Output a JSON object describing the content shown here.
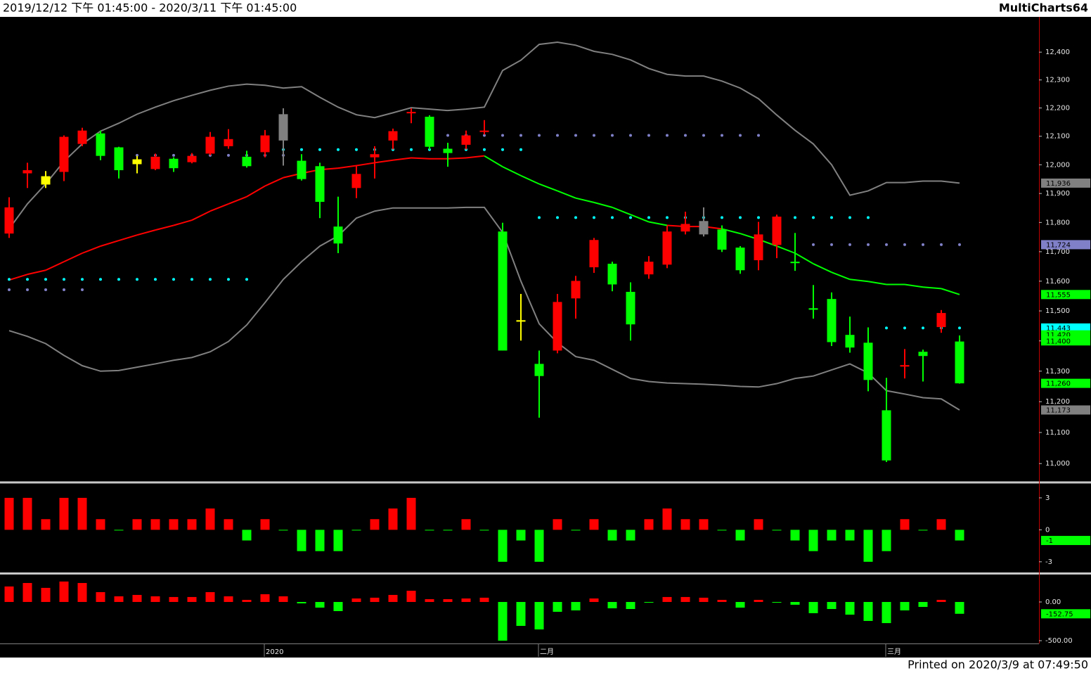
{
  "header": {
    "range": "2019/12/12 下午 01:45:00 - 2020/3/11 下午 01:45:00",
    "brand": "MultiCharts64"
  },
  "footer": "Printed on 2020/3/9 at 07:49:50",
  "chart_data": [
    {
      "type": "candlestick",
      "log_scale": true,
      "ylim": [
        10942,
        12528
      ],
      "yticks": [
        {
          "value": 11000,
          "label": "11,000"
        },
        {
          "value": 11100,
          "label": "11,100"
        },
        {
          "value": 11200,
          "label": "11,200"
        },
        {
          "value": 11300,
          "label": "11,300"
        },
        {
          "value": 11400,
          "label": "11,400"
        },
        {
          "value": 11500,
          "label": "11,500"
        },
        {
          "value": 11600,
          "label": "11,600"
        },
        {
          "value": 11700,
          "label": "11,700"
        },
        {
          "value": 11800,
          "label": "11,800"
        },
        {
          "value": 11900,
          "label": "11,900"
        },
        {
          "value": 12000,
          "label": "12,000"
        },
        {
          "value": 12100,
          "label": "12,100"
        },
        {
          "value": 12200,
          "label": "12,200"
        },
        {
          "value": 12300,
          "label": "12,300"
        },
        {
          "value": 12400,
          "label": "12,400"
        }
      ],
      "open": [
        11762,
        11970,
        11960,
        11975,
        12073,
        12110,
        12061,
        12019,
        11985,
        12021,
        12009,
        12039,
        12065,
        12028,
        12044,
        12178,
        12014,
        11995,
        11786,
        11919,
        12026,
        12085,
        12181,
        12169,
        12056,
        12070,
        12115,
        11769,
        11469,
        11324,
        11368,
        11542,
        11647,
        11659,
        11564,
        11623,
        11656,
        11769,
        11805,
        11776,
        11714,
        11671,
        11723,
        11666,
        11509,
        11540,
        11420,
        11394,
        11172,
        11315,
        11364,
        11446,
        11398
      ],
      "high": [
        11887,
        12007,
        11978,
        12103,
        12130,
        12120,
        12063,
        12031,
        12039,
        12026,
        12041,
        12115,
        12125,
        12049,
        12122,
        12199,
        12037,
        12007,
        11889,
        11997,
        12065,
        12127,
        12199,
        12174,
        12077,
        12120,
        12157,
        11799,
        11557,
        11368,
        11557,
        11618,
        11747,
        11666,
        11596,
        11685,
        11788,
        11837,
        11852,
        11790,
        11719,
        11802,
        11827,
        11764,
        11587,
        11562,
        11481,
        11445,
        11278,
        11373,
        11371,
        11503,
        11418
      ],
      "low": [
        11747,
        11919,
        11919,
        11943,
        12065,
        12016,
        11952,
        11970,
        11981,
        11975,
        12005,
        12033,
        12056,
        11990,
        12026,
        11997,
        11945,
        11815,
        11695,
        11884,
        11952,
        12053,
        12146,
        12053,
        11993,
        12053,
        12106,
        11368,
        11401,
        11148,
        11359,
        11474,
        11628,
        11566,
        11401,
        11608,
        11644,
        11759,
        11752,
        11699,
        11625,
        11637,
        11678,
        11635,
        11474,
        11383,
        11361,
        11234,
        11005,
        11276,
        11266,
        11427,
        11259
      ],
      "close": [
        11852,
        11981,
        11931,
        12098,
        12120,
        12031,
        11981,
        12002,
        12028,
        11988,
        12031,
        12098,
        12090,
        11995,
        12103,
        12085,
        11950,
        11871,
        11728,
        11968,
        12037,
        12118,
        12186,
        12063,
        12041,
        12103,
        12120,
        11368,
        11464,
        11284,
        11530,
        11601,
        11740,
        11589,
        11455,
        11666,
        11769,
        11795,
        11759,
        11707,
        11637,
        11759,
        11820,
        11661,
        11504,
        11396,
        11378,
        11271,
        11010,
        11320,
        11350,
        11493,
        11260
      ],
      "candle_colors": [
        "#ff0000",
        "#ff0000",
        "#ffff00",
        "#ff0000",
        "#ff0000",
        "#00ff00",
        "#00ff00",
        "#ffff00",
        "#ff0000",
        "#00ff00",
        "#ff0000",
        "#ff0000",
        "#ff0000",
        "#00ff00",
        "#ff0000",
        "#808080",
        "#00ff00",
        "#00ff00",
        "#00ff00",
        "#ff0000",
        "#ff0000",
        "#ff0000",
        "#ff0000",
        "#00ff00",
        "#00ff00",
        "#ff0000",
        "#ff0000",
        "#00ff00",
        "#ffff00",
        "#00ff00",
        "#ff0000",
        "#ff0000",
        "#ff0000",
        "#00ff00",
        "#00ff00",
        "#ff0000",
        "#ff0000",
        "#ff0000",
        "#808080",
        "#00ff00",
        "#00ff00",
        "#ff0000",
        "#ff0000",
        "#00ff00",
        "#00ff00",
        "#00ff00",
        "#00ff00",
        "#00ff00",
        "#00ff00",
        "#ff0000",
        "#00ff00",
        "#ff0000",
        "#00ff00"
      ],
      "lines": [
        {
          "color": "#808080",
          "values": [
            11778,
            11864,
            11933,
            12012,
            12073,
            12118,
            12146,
            12178,
            12203,
            12226,
            12245,
            12263,
            12278,
            12285,
            12281,
            12271,
            12276,
            12238,
            12203,
            12176,
            12166,
            12183,
            12201,
            12196,
            12191,
            12196,
            12203,
            12334,
            12371,
            12428,
            12436,
            12425,
            12403,
            12392,
            12372,
            12341,
            12320,
            12314,
            12314,
            12296,
            12271,
            12233,
            12175,
            12121,
            12073,
            12000,
            11894,
            11909,
            11938,
            11938,
            11943,
            11943,
            11936
          ]
        },
        {
          "color": "#808080",
          "values": [
            11434,
            11415,
            11391,
            11352,
            11318,
            11300,
            11302,
            11313,
            11324,
            11336,
            11345,
            11364,
            11398,
            11453,
            11528,
            11606,
            11666,
            11719,
            11754,
            11815,
            11839,
            11850,
            11850,
            11850,
            11850,
            11852,
            11852,
            11766,
            11600,
            11457,
            11394,
            11348,
            11336,
            11306,
            11276,
            11266,
            11261,
            11259,
            11257,
            11254,
            11250,
            11248,
            11259,
            11276,
            11284,
            11304,
            11324,
            11294,
            11236,
            11225,
            11213,
            11209,
            11173
          ]
        },
        {
          "colors": [
            "#ff0000",
            "#ff0000",
            "#ff0000",
            "#ff0000",
            "#ff0000",
            "#ff0000",
            "#ff0000",
            "#ff0000",
            "#ff0000",
            "#ff0000",
            "#ff0000",
            "#ff0000",
            "#ff0000",
            "#ff0000",
            "#ff0000",
            "#ff0000",
            "#ff0000",
            "#ff0000",
            "#ff0000",
            "#ff0000",
            "#ff0000",
            "#ff0000",
            "#ff0000",
            "#ff0000",
            "#ff0000",
            "#ff0000",
            "#ff0000",
            "#00ff00",
            "#00ff00",
            "#00ff00",
            "#00ff00",
            "#00ff00",
            "#00ff00",
            "#00ff00",
            "#00ff00",
            "#00ff00",
            "#00ff00",
            "#ff0000",
            "#ff0000",
            "#ff0000",
            "#00ff00",
            "#00ff00",
            "#00ff00",
            "#00ff00",
            "#00ff00",
            "#00ff00",
            "#00ff00",
            "#00ff00",
            "#00ff00",
            "#00ff00",
            "#00ff00",
            "#00ff00",
            "#00ff00"
          ],
          "values": [
            11604,
            11623,
            11637,
            11666,
            11695,
            11719,
            11738,
            11757,
            11774,
            11790,
            11808,
            11839,
            11864,
            11889,
            11926,
            11955,
            11970,
            11983,
            11988,
            11997,
            12007,
            12016,
            12024,
            12021,
            12021,
            12024,
            12031,
            11993,
            11962,
            11933,
            11909,
            11884,
            11869,
            11852,
            11827,
            11802,
            11790,
            11786,
            11786,
            11778,
            11762,
            11742,
            11719,
            11695,
            11659,
            11630,
            11606,
            11599,
            11589,
            11589,
            11580,
            11575,
            11555
          ]
        }
      ],
      "dots": [
        {
          "color": "#00ffff",
          "values": [
            11606,
            11606,
            11606,
            11606,
            11606,
            11606,
            11606,
            11606,
            11606,
            11606,
            11606,
            11606,
            11606,
            11606,
            12053,
            12053,
            12053,
            12053,
            12053,
            12053,
            12053,
            12053,
            12053,
            12053,
            12053,
            12053,
            12053,
            12053,
            12053,
            11817,
            11817,
            11817,
            11817,
            11817,
            11817,
            11817,
            11817,
            11817,
            11817,
            11817,
            11817,
            11817,
            11817,
            11817,
            11817,
            11817,
            11817,
            11817,
            11443,
            11443,
            11443,
            11443,
            11443
          ]
        },
        {
          "color": "#8080c8",
          "values": [
            11571,
            11571,
            11571,
            11571,
            11571,
            null,
            12033,
            12033,
            12033,
            12033,
            12033,
            12033,
            12033,
            12033,
            12033,
            12033,
            null,
            null,
            null,
            null,
            null,
            null,
            null,
            null,
            12103,
            12103,
            12103,
            12103,
            12103,
            12103,
            12103,
            12103,
            12103,
            12103,
            12103,
            12103,
            12103,
            12103,
            12103,
            12103,
            12103,
            12103,
            null,
            null,
            11724,
            11724,
            11724,
            11724,
            11724,
            11724,
            11724,
            11724,
            11724
          ]
        }
      ],
      "price_tags": [
        {
          "value": 11936,
          "label": "11,936",
          "color": "#808080"
        },
        {
          "value": 11724,
          "label": "11,724",
          "color": "#8080c8"
        },
        {
          "value": 11555,
          "label": "11,555",
          "color": "#00ff00"
        },
        {
          "value": 11443,
          "label": "11,443",
          "color": "#00ffff"
        },
        {
          "value": 11420,
          "label": "11,420",
          "color": "#00ff00"
        },
        {
          "value": 11400,
          "label": "11,400",
          "color": "#00ff00"
        },
        {
          "value": 11260,
          "label": "11,260",
          "color": "#00ff00"
        },
        {
          "value": 11173,
          "label": "11,173",
          "color": "#808080"
        }
      ]
    },
    {
      "type": "bar",
      "ylim": [
        -4,
        4.25
      ],
      "yticks": [
        -3,
        0,
        3
      ],
      "up_color": "#ff0000",
      "down_color": "#00ff00",
      "values": [
        3,
        3,
        1,
        3,
        3,
        1,
        0,
        1,
        1,
        1,
        1,
        2,
        1,
        -1,
        1,
        0,
        -2,
        -2,
        -2,
        0,
        1,
        2,
        3,
        0,
        0,
        1,
        0,
        -3,
        -1,
        -3,
        1,
        0,
        1,
        -1,
        -1,
        1,
        2,
        1,
        1,
        0,
        -1,
        1,
        0,
        -1,
        -2,
        -1,
        -1,
        -3,
        -2,
        1,
        0,
        1,
        -1
      ],
      "price_tags": [
        {
          "value": -1,
          "label": "-1",
          "color": "#00ff00"
        }
      ]
    },
    {
      "type": "bar",
      "ylim": [
        -536,
        345
      ],
      "yticks": [
        {
          "value": -500,
          "label": "-500.00"
        },
        {
          "value": 0,
          "label": "0.00"
        }
      ],
      "up_color": "#ff0000",
      "down_color": "#00ff00",
      "values": [
        200,
        245,
        182,
        264,
        245,
        127,
        73,
        91,
        73,
        64,
        64,
        127,
        73,
        27,
        100,
        73,
        -18,
        -73,
        -118,
        45,
        55,
        91,
        145,
        36,
        36,
        45,
        55,
        -500,
        -309,
        -355,
        -127,
        -109,
        45,
        -82,
        -91,
        -9,
        64,
        64,
        55,
        27,
        -73,
        27,
        -9,
        -36,
        -145,
        -91,
        -164,
        -245,
        -273,
        -109,
        -64,
        27,
        -152.75
      ],
      "price_tags": [
        {
          "value": -152.75,
          "label": "-152.75",
          "color": "#00ff00"
        }
      ],
      "categories": [
        null,
        null,
        null,
        null,
        null,
        null,
        null,
        null,
        null,
        null,
        null,
        null,
        null,
        null,
        "2020",
        null,
        null,
        null,
        null,
        null,
        null,
        null,
        null,
        null,
        null,
        null,
        null,
        null,
        null,
        "二月",
        null,
        null,
        null,
        null,
        null,
        null,
        null,
        null,
        null,
        null,
        null,
        null,
        null,
        null,
        null,
        null,
        null,
        null,
        "三月",
        null,
        null,
        null,
        null
      ]
    }
  ]
}
